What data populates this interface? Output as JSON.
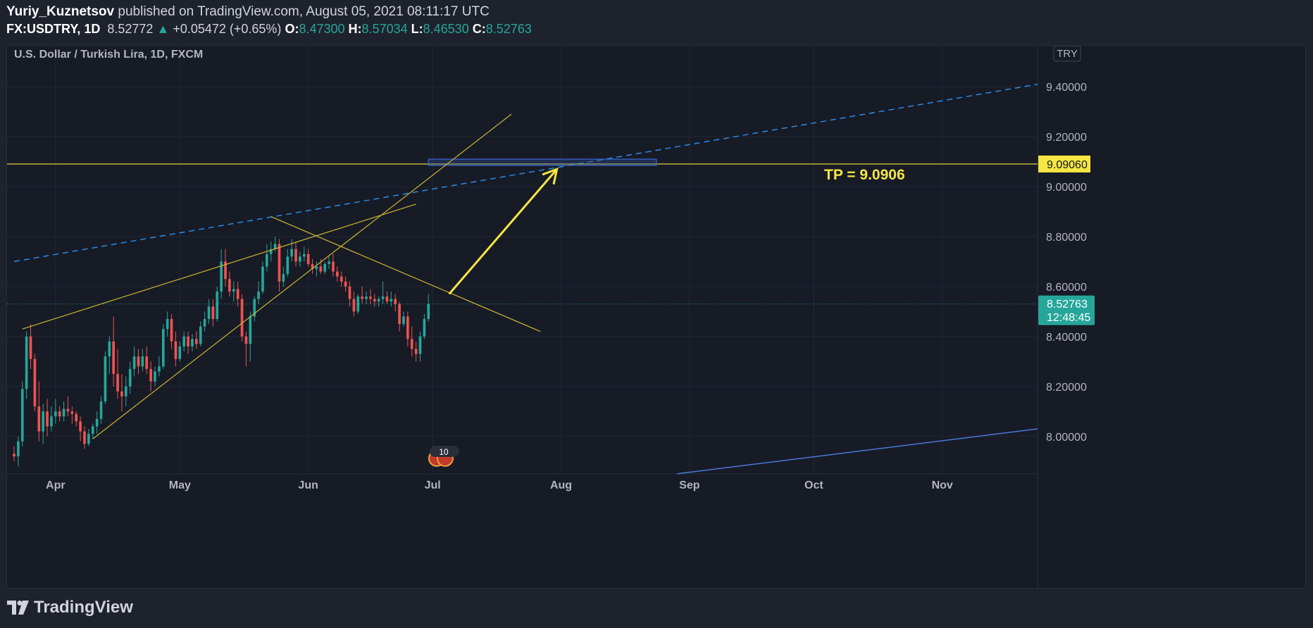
{
  "header": {
    "author": "Yuriy_Kuznetsov",
    "published": "published on TradingView.com, August 05, 2021 08:11:17 UTC",
    "symbol": "FX:USDTRY, 1D",
    "last": "8.52772",
    "change_arrow": "▲",
    "change": "+0.05472 (+0.65%)",
    "o_label": "O:",
    "o_value": "8.47300",
    "h_label": "H:",
    "h_value": "8.57034",
    "l_label": "L:",
    "l_value": "8.46530",
    "c_label": "C:",
    "c_value": "8.52763"
  },
  "colors": {
    "up": "#26a69a",
    "down": "#ef5350",
    "yellow": "#f5e642",
    "trend": "#c9b632",
    "blue": "#2d8ae6",
    "bg": "#171b26"
  },
  "footer": {
    "brand": "TradingView"
  },
  "chart_data": {
    "type": "candlestick",
    "title": "U.S. Dollar / Turkish Lira, 1D, FXCM",
    "currency_badge": "TRY",
    "y_ticks": [
      "9.40000",
      "9.20000",
      "9.00000",
      "8.80000",
      "8.60000",
      "8.40000",
      "8.20000",
      "8.00000"
    ],
    "y_tick_values": [
      9.4,
      9.2,
      9.0,
      8.8,
      8.6,
      8.4,
      8.2,
      8.0
    ],
    "ylim": [
      7.85,
      9.55
    ],
    "x_ticks": [
      "Apr",
      "May",
      "Jun",
      "Jul",
      "Aug",
      "Sep",
      "Oct",
      "Nov"
    ],
    "x_tick_days": [
      32,
      62,
      93,
      123,
      154,
      185,
      215,
      246
    ],
    "x_day_range": [
      22,
      269
    ],
    "price_tag": "8.52763",
    "countdown": "12:48:45",
    "level_tag": "9.09060",
    "level_value": 9.0906,
    "tp_label": "TP = 9.0906",
    "events_badge": "10",
    "candles": [
      [
        22,
        7.93,
        7.96,
        7.9,
        7.92
      ],
      [
        23,
        7.92,
        8.0,
        7.88,
        7.98
      ],
      [
        24,
        7.98,
        8.22,
        7.96,
        8.19
      ],
      [
        25,
        8.19,
        8.42,
        8.15,
        8.4
      ],
      [
        26,
        8.4,
        8.45,
        8.27,
        8.31
      ],
      [
        27,
        8.31,
        8.33,
        8.1,
        8.12
      ],
      [
        28,
        8.12,
        8.22,
        7.98,
        8.02
      ],
      [
        29,
        8.02,
        8.13,
        7.97,
        8.1
      ],
      [
        30,
        8.1,
        8.15,
        8.0,
        8.04
      ],
      [
        31,
        8.04,
        8.12,
        8.02,
        8.08
      ],
      [
        32,
        8.08,
        8.15,
        8.05,
        8.1
      ],
      [
        33,
        8.1,
        8.12,
        8.06,
        8.08
      ],
      [
        34,
        8.08,
        8.14,
        8.06,
        8.11
      ],
      [
        35,
        8.11,
        8.16,
        8.08,
        8.1
      ],
      [
        36,
        8.1,
        8.12,
        8.05,
        8.09
      ],
      [
        37,
        8.09,
        8.1,
        8.04,
        8.06
      ],
      [
        38,
        8.06,
        8.08,
        7.98,
        8.02
      ],
      [
        39,
        8.02,
        8.04,
        7.95,
        7.97
      ],
      [
        40,
        7.97,
        8.03,
        7.96,
        8.01
      ],
      [
        41,
        8.01,
        8.05,
        7.99,
        8.04
      ],
      [
        42,
        8.04,
        8.1,
        8.01,
        8.07
      ],
      [
        43,
        8.07,
        8.16,
        8.05,
        8.14
      ],
      [
        44,
        8.14,
        8.34,
        8.13,
        8.32
      ],
      [
        45,
        8.32,
        8.4,
        8.25,
        8.38
      ],
      [
        46,
        8.38,
        8.48,
        8.2,
        8.25
      ],
      [
        47,
        8.25,
        8.35,
        8.15,
        8.18
      ],
      [
        48,
        8.18,
        8.25,
        8.1,
        8.16
      ],
      [
        49,
        8.16,
        8.24,
        8.12,
        8.2
      ],
      [
        50,
        8.2,
        8.3,
        8.17,
        8.27
      ],
      [
        51,
        8.27,
        8.36,
        8.24,
        8.32
      ],
      [
        52,
        8.32,
        8.35,
        8.25,
        8.28
      ],
      [
        53,
        8.28,
        8.35,
        8.26,
        8.32
      ],
      [
        54,
        8.32,
        8.36,
        8.25,
        8.27
      ],
      [
        55,
        8.27,
        8.3,
        8.18,
        8.22
      ],
      [
        56,
        8.22,
        8.28,
        8.2,
        8.26
      ],
      [
        57,
        8.26,
        8.32,
        8.24,
        8.28
      ],
      [
        58,
        8.28,
        8.45,
        8.27,
        8.43
      ],
      [
        59,
        8.43,
        8.5,
        8.4,
        8.47
      ],
      [
        60,
        8.47,
        8.49,
        8.35,
        8.38
      ],
      [
        61,
        8.38,
        8.42,
        8.28,
        8.31
      ],
      [
        62,
        8.31,
        8.38,
        8.3,
        8.36
      ],
      [
        63,
        8.36,
        8.42,
        8.34,
        8.4
      ],
      [
        64,
        8.4,
        8.42,
        8.33,
        8.36
      ],
      [
        65,
        8.36,
        8.41,
        8.34,
        8.39
      ],
      [
        66,
        8.39,
        8.42,
        8.35,
        8.37
      ],
      [
        67,
        8.37,
        8.46,
        8.36,
        8.44
      ],
      [
        68,
        8.44,
        8.5,
        8.42,
        8.47
      ],
      [
        69,
        8.47,
        8.55,
        8.45,
        8.52
      ],
      [
        70,
        8.52,
        8.55,
        8.44,
        8.47
      ],
      [
        71,
        8.47,
        8.6,
        8.46,
        8.58
      ],
      [
        72,
        8.58,
        8.75,
        8.55,
        8.7
      ],
      [
        73,
        8.7,
        8.75,
        8.6,
        8.63
      ],
      [
        74,
        8.63,
        8.66,
        8.56,
        8.58
      ],
      [
        75,
        8.58,
        8.62,
        8.54,
        8.59
      ],
      [
        76,
        8.59,
        8.62,
        8.52,
        8.55
      ],
      [
        77,
        8.55,
        8.57,
        8.38,
        8.4
      ],
      [
        78,
        8.4,
        8.42,
        8.28,
        8.37
      ],
      [
        79,
        8.37,
        8.5,
        8.3,
        8.48
      ],
      [
        80,
        8.48,
        8.56,
        8.46,
        8.55
      ],
      [
        81,
        8.55,
        8.62,
        8.53,
        8.58
      ],
      [
        82,
        8.58,
        8.7,
        8.57,
        8.68
      ],
      [
        83,
        8.68,
        8.77,
        8.66,
        8.73
      ],
      [
        84,
        8.73,
        8.78,
        8.7,
        8.75
      ],
      [
        85,
        8.75,
        8.8,
        8.74,
        8.77
      ],
      [
        86,
        8.77,
        8.79,
        8.58,
        8.62
      ],
      [
        87,
        8.62,
        8.68,
        8.6,
        8.65
      ],
      [
        88,
        8.65,
        8.75,
        8.64,
        8.72
      ],
      [
        89,
        8.72,
        8.79,
        8.7,
        8.75
      ],
      [
        90,
        8.75,
        8.78,
        8.68,
        8.7
      ],
      [
        91,
        8.7,
        8.74,
        8.68,
        8.72
      ],
      [
        92,
        8.72,
        8.76,
        8.7,
        8.73
      ],
      [
        93,
        8.73,
        8.75,
        8.68,
        8.69
      ],
      [
        94,
        8.69,
        8.71,
        8.65,
        8.67
      ],
      [
        95,
        8.67,
        8.7,
        8.64,
        8.68
      ],
      [
        96,
        8.68,
        8.71,
        8.65,
        8.66
      ],
      [
        97,
        8.66,
        8.7,
        8.65,
        8.69
      ],
      [
        98,
        8.69,
        8.72,
        8.67,
        8.7
      ],
      [
        99,
        8.7,
        8.73,
        8.64,
        8.66
      ],
      [
        100,
        8.66,
        8.68,
        8.62,
        8.64
      ],
      [
        101,
        8.64,
        8.66,
        8.6,
        8.62
      ],
      [
        102,
        8.62,
        8.64,
        8.58,
        8.6
      ],
      [
        103,
        8.6,
        8.62,
        8.52,
        8.55
      ],
      [
        104,
        8.55,
        8.58,
        8.48,
        8.5
      ],
      [
        105,
        8.5,
        8.57,
        8.49,
        8.56
      ],
      [
        106,
        8.56,
        8.6,
        8.53,
        8.55
      ],
      [
        107,
        8.55,
        8.58,
        8.53,
        8.56
      ],
      [
        108,
        8.56,
        8.59,
        8.53,
        8.55
      ],
      [
        109,
        8.55,
        8.57,
        8.52,
        8.54
      ],
      [
        110,
        8.54,
        8.56,
        8.52,
        8.55
      ],
      [
        111,
        8.55,
        8.62,
        8.53,
        8.56
      ],
      [
        112,
        8.56,
        8.58,
        8.53,
        8.54
      ],
      [
        113,
        8.54,
        8.58,
        8.52,
        8.55
      ],
      [
        114,
        8.55,
        8.57,
        8.5,
        8.53
      ],
      [
        115,
        8.53,
        8.54,
        8.42,
        8.45
      ],
      [
        116,
        8.45,
        8.5,
        8.44,
        8.48
      ],
      [
        117,
        8.48,
        8.5,
        8.36,
        8.39
      ],
      [
        118,
        8.39,
        8.44,
        8.32,
        8.35
      ],
      [
        119,
        8.35,
        8.38,
        8.3,
        8.33
      ],
      [
        120,
        8.33,
        8.42,
        8.3,
        8.4
      ],
      [
        121,
        8.4,
        8.49,
        8.39,
        8.47
      ],
      [
        122,
        8.47,
        8.57,
        8.46,
        8.53
      ]
    ],
    "drawings": {
      "horizontal_level": 9.0906,
      "zone": {
        "x1": 122,
        "x2": 177,
        "y1": 9.11,
        "y2": 9.085
      },
      "arrow": {
        "from": [
          127,
          8.57
        ],
        "to": [
          153,
          9.07
        ]
      },
      "lines": [
        {
          "style": "trend",
          "from": [
            24,
            8.43
          ],
          "to": [
            119,
            8.93
          ]
        },
        {
          "style": "trend",
          "from": [
            41,
            7.99
          ],
          "to": [
            142,
            9.29
          ]
        },
        {
          "style": "trend",
          "from": [
            84,
            8.88
          ],
          "to": [
            149,
            8.42
          ]
        },
        {
          "style": "dashed-blue",
          "from": [
            22,
            8.7
          ],
          "to": [
            269,
            9.41
          ]
        },
        {
          "style": "solid-blue",
          "from": [
            182,
            7.84
          ],
          "to": [
            269,
            8.03
          ]
        }
      ]
    }
  }
}
